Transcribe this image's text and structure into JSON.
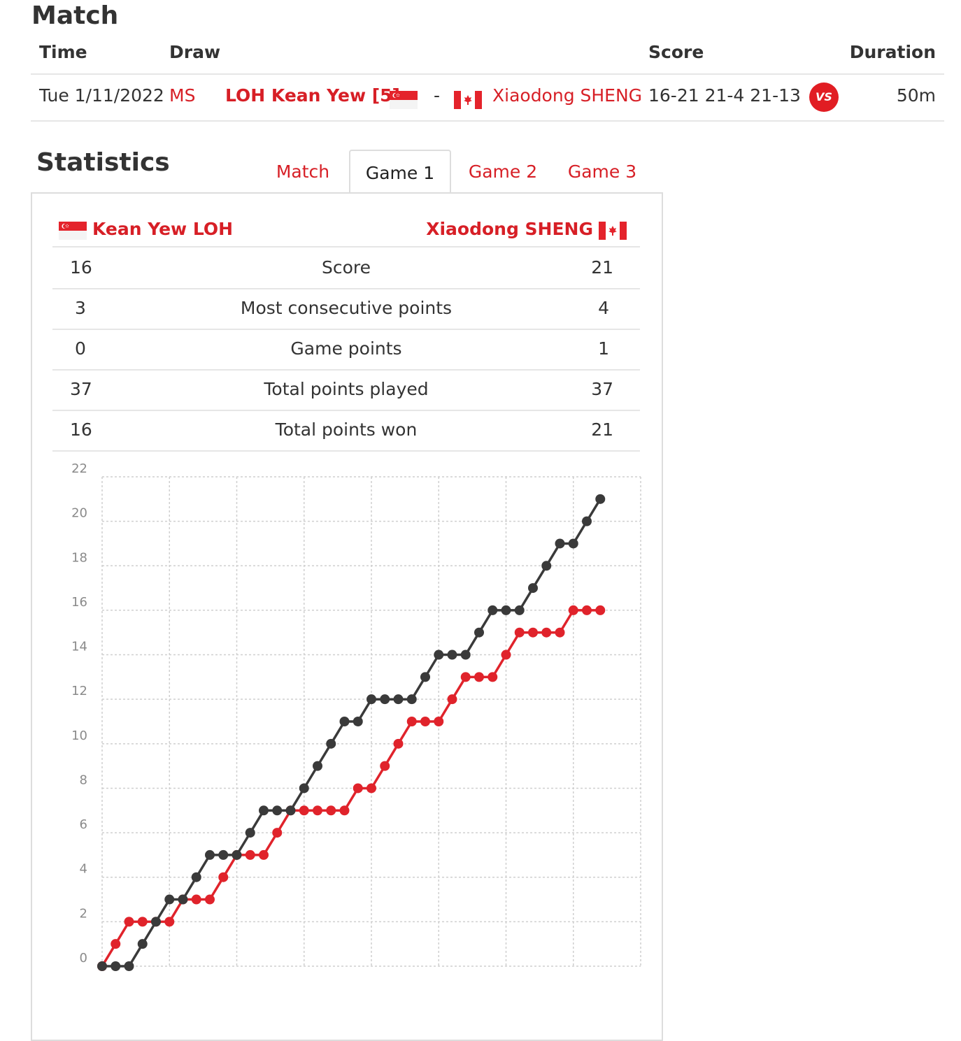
{
  "match": {
    "title": "Match",
    "headers": {
      "time": "Time",
      "draw": "Draw",
      "score": "Score",
      "duration": "Duration"
    },
    "row": {
      "time": "Tue 1/11/2022",
      "draw": "MS",
      "player1": "LOH Kean Yew [5]",
      "separator": "-",
      "player2": "Xiaodong SHENG",
      "score": "16-21 21-4 21-13",
      "vs_label": "VS",
      "duration": "50m"
    }
  },
  "statistics": {
    "title": "Statistics",
    "tabs": [
      "Match",
      "Game 1",
      "Game 2",
      "Game 3"
    ],
    "active_tab": "Game 1",
    "player_left": "Kean Yew LOH",
    "player_right": "Xiaodong SHENG",
    "rows": [
      {
        "left": "16",
        "label": "Score",
        "right": "21"
      },
      {
        "left": "3",
        "label": "Most consecutive points",
        "right": "4"
      },
      {
        "left": "0",
        "label": "Game points",
        "right": "1"
      },
      {
        "left": "37",
        "label": "Total points played",
        "right": "37"
      },
      {
        "left": "16",
        "label": "Total points won",
        "right": "21"
      }
    ]
  },
  "colors": {
    "accent": "#d71f26",
    "dark_series": "#3a3a3a",
    "red_series": "#e0232b"
  },
  "icons": {
    "flag_left": "singapore-flag-icon",
    "flag_right": "canada-flag-icon",
    "vs": "vs-badge-icon"
  },
  "chart_data": {
    "type": "line",
    "y_ticks": [
      "0",
      "2",
      "4",
      "6",
      "8",
      "10",
      "12",
      "14",
      "16",
      "18",
      "20",
      "22"
    ],
    "ylim": [
      0,
      22
    ],
    "grid": true,
    "series": [
      {
        "name": "Kean Yew LOH",
        "color": "#e0232b",
        "values": [
          0,
          1,
          2,
          2,
          2,
          2,
          3,
          3,
          3,
          4,
          5,
          5,
          5,
          6,
          7,
          7,
          7,
          7,
          7,
          8,
          8,
          9,
          10,
          11,
          11,
          11,
          12,
          13,
          13,
          13,
          14,
          15,
          15,
          15,
          15,
          16,
          16,
          16
        ]
      },
      {
        "name": "Xiaodong SHENG",
        "color": "#3a3a3a",
        "values": [
          0,
          0,
          0,
          1,
          2,
          3,
          3,
          4,
          5,
          5,
          5,
          6,
          7,
          7,
          7,
          8,
          9,
          10,
          11,
          11,
          12,
          12,
          12,
          12,
          13,
          14,
          14,
          14,
          15,
          16,
          16,
          16,
          17,
          18,
          19,
          19,
          20,
          21
        ]
      }
    ]
  }
}
